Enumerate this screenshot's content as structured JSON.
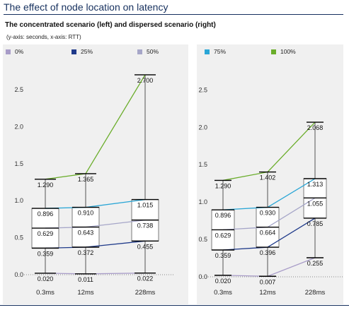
{
  "header": {
    "title": "The effect of node location on latency",
    "subtitle": "The concentrated scenario (left) and dispersed scenario (right)",
    "axis_note": "(y-axis: seconds, x-axis: RTT)"
  },
  "legend": [
    {
      "label": "0%",
      "color": "#a89cc8"
    },
    {
      "label": "25%",
      "color": "#1f3a8a"
    },
    {
      "label": "50%",
      "color": "#a6a6c8"
    },
    {
      "label": "75%",
      "color": "#2aa6d6"
    },
    {
      "label": "100%",
      "color": "#6aad2a"
    }
  ],
  "chart_data": [
    {
      "type": "line",
      "title": "concentrated scenario",
      "xlabel": "RTT",
      "ylabel": "seconds",
      "categories": [
        "0.3ms",
        "12ms",
        "228ms"
      ],
      "y_ticks": [
        "0.0",
        "0.5",
        "1.0",
        "1.5",
        "2.0",
        "2.5"
      ],
      "ylim": [
        0,
        2.9
      ],
      "series": [
        {
          "name": "0%",
          "color": "#a89cc8",
          "values": [
            0.02,
            0.011,
            0.022
          ],
          "labels": [
            "0.020",
            "0.011",
            "0.022"
          ]
        },
        {
          "name": "25%",
          "color": "#1f3a8a",
          "values": [
            0.359,
            0.372,
            0.455
          ],
          "labels": [
            "0.359",
            "0.372",
            "0.455"
          ]
        },
        {
          "name": "50%",
          "color": "#a6a6c8",
          "values": [
            0.629,
            0.643,
            0.738
          ],
          "labels": [
            "0.629",
            "0.643",
            "0.738"
          ]
        },
        {
          "name": "75%",
          "color": "#2aa6d6",
          "values": [
            0.896,
            0.91,
            1.015
          ],
          "labels": [
            "0.896",
            "0.910",
            "1.015"
          ]
        },
        {
          "name": "100%",
          "color": "#6aad2a",
          "values": [
            1.29,
            1.365,
            2.7
          ],
          "labels": [
            "1.290",
            "1.365",
            "2.700"
          ]
        }
      ]
    },
    {
      "type": "line",
      "title": "dispersed scenario",
      "xlabel": "RTT",
      "ylabel": "seconds",
      "categories": [
        "0.3ms",
        "12ms",
        "228ms"
      ],
      "y_ticks": [
        "0.0",
        "0.5",
        "1.0",
        "1.5",
        "2.0",
        "2.5"
      ],
      "ylim": [
        0,
        2.9
      ],
      "series": [
        {
          "name": "0%",
          "color": "#a89cc8",
          "values": [
            0.02,
            0.007,
            0.255
          ],
          "labels": [
            "0.020",
            "0.007",
            "0.255"
          ]
        },
        {
          "name": "25%",
          "color": "#1f3a8a",
          "values": [
            0.359,
            0.396,
            0.785
          ],
          "labels": [
            "0.359",
            "0.396",
            "0.785"
          ]
        },
        {
          "name": "50%",
          "color": "#a6a6c8",
          "values": [
            0.629,
            0.664,
            1.055
          ],
          "labels": [
            "0.629",
            "0.664",
            "1.055"
          ]
        },
        {
          "name": "75%",
          "color": "#2aa6d6",
          "values": [
            0.896,
            0.93,
            1.313
          ],
          "labels": [
            "0.896",
            "0.930",
            "1.313"
          ]
        },
        {
          "name": "100%",
          "color": "#6aad2a",
          "values": [
            1.29,
            1.402,
            2.068
          ],
          "labels": [
            "1.290",
            "1.402",
            "2.068"
          ]
        }
      ]
    }
  ]
}
